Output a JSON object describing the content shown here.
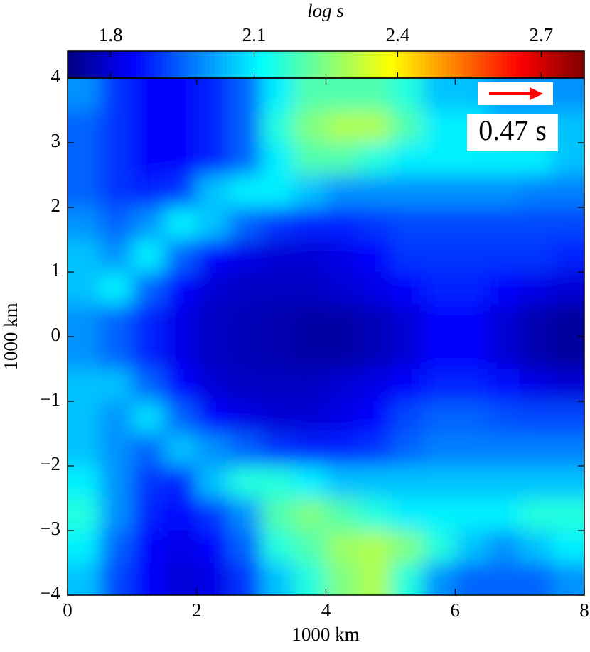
{
  "chart_data": {
    "type": "heatmap",
    "xlabel": "1000 km",
    "ylabel": "1000 km",
    "colorbar_label": "log s",
    "annotation": "0.47 s",
    "colormap": "jet",
    "xlim": [
      0,
      8
    ],
    "ylim": [
      -4,
      4
    ],
    "xticks": [
      0,
      2,
      4,
      6,
      8
    ],
    "yticks": [
      {
        "value": -4,
        "label": "−4"
      },
      {
        "value": -3,
        "label": "−3"
      },
      {
        "value": -2,
        "label": "−2"
      },
      {
        "value": -1,
        "label": "−1"
      },
      0,
      1,
      2,
      3,
      4
    ],
    "clim": [
      1.71,
      2.79
    ],
    "cticks": [
      1.8,
      2.1,
      2.4,
      2.7
    ],
    "x": [
      0.25,
      0.75,
      1.25,
      1.75,
      2.25,
      2.75,
      3.25,
      3.75,
      4.25,
      4.75,
      5.25,
      5.75,
      6.25,
      6.75,
      7.25,
      7.75
    ],
    "y": [
      3.75,
      3.25,
      2.75,
      2.25,
      1.75,
      1.25,
      0.75,
      0.25,
      -0.25,
      -0.75,
      -1.25,
      -1.75,
      -2.25,
      -2.75,
      -3.25,
      -3.75
    ],
    "values": [
      [
        2.0,
        1.9,
        1.85,
        1.85,
        1.88,
        1.95,
        2.1,
        2.2,
        2.2,
        2.2,
        2.15,
        2.05,
        2.05,
        2.0,
        2.0,
        2.0
      ],
      [
        1.95,
        1.9,
        1.85,
        1.85,
        1.88,
        1.95,
        2.15,
        2.25,
        2.3,
        2.3,
        2.2,
        2.1,
        2.1,
        2.05,
        2.05,
        2.05
      ],
      [
        1.95,
        1.9,
        1.85,
        1.85,
        1.88,
        1.95,
        2.1,
        2.2,
        2.2,
        2.15,
        2.1,
        2.1,
        2.1,
        2.1,
        2.1,
        2.05
      ],
      [
        1.95,
        1.9,
        1.88,
        1.9,
        2.05,
        2.1,
        2.1,
        2.05,
        2.0,
        2.0,
        2.0,
        2.0,
        2.0,
        2.0,
        1.98,
        1.98
      ],
      [
        2.0,
        1.95,
        2.0,
        2.1,
        2.05,
        1.95,
        1.9,
        1.88,
        1.88,
        1.9,
        1.92,
        1.92,
        1.92,
        1.92,
        1.92,
        1.92
      ],
      [
        2.05,
        2.0,
        2.1,
        1.95,
        1.85,
        1.82,
        1.8,
        1.8,
        1.82,
        1.85,
        1.9,
        1.9,
        1.9,
        1.9,
        1.9,
        1.88
      ],
      [
        2.05,
        2.1,
        1.95,
        1.85,
        1.8,
        1.78,
        1.78,
        1.78,
        1.8,
        1.82,
        1.85,
        1.88,
        1.88,
        1.85,
        1.82,
        1.8
      ],
      [
        2.0,
        1.95,
        1.88,
        1.82,
        1.78,
        1.77,
        1.76,
        1.75,
        1.75,
        1.77,
        1.8,
        1.85,
        1.85,
        1.8,
        1.76,
        1.74
      ],
      [
        2.0,
        1.95,
        1.88,
        1.82,
        1.78,
        1.77,
        1.76,
        1.75,
        1.75,
        1.77,
        1.8,
        1.85,
        1.85,
        1.8,
        1.76,
        1.74
      ],
      [
        2.05,
        2.05,
        1.95,
        1.85,
        1.8,
        1.78,
        1.78,
        1.78,
        1.8,
        1.82,
        1.85,
        1.88,
        1.88,
        1.86,
        1.82,
        1.8
      ],
      [
        2.05,
        2.0,
        2.08,
        1.95,
        1.85,
        1.82,
        1.8,
        1.8,
        1.82,
        1.85,
        1.92,
        1.95,
        1.95,
        1.93,
        1.92,
        1.92
      ],
      [
        2.05,
        2.0,
        1.95,
        2.05,
        2.0,
        1.95,
        1.9,
        1.88,
        1.88,
        1.9,
        1.95,
        1.98,
        1.98,
        1.98,
        1.98,
        1.98
      ],
      [
        2.1,
        2.0,
        1.9,
        1.88,
        2.05,
        2.15,
        2.15,
        2.1,
        2.05,
        2.05,
        2.05,
        2.05,
        2.05,
        2.05,
        2.05,
        2.05
      ],
      [
        2.15,
        2.0,
        1.88,
        1.85,
        1.9,
        2.0,
        2.2,
        2.25,
        2.2,
        2.15,
        2.1,
        2.1,
        2.1,
        2.1,
        2.15,
        2.15
      ],
      [
        2.1,
        1.95,
        1.85,
        1.82,
        1.85,
        1.95,
        2.15,
        2.2,
        2.28,
        2.3,
        2.25,
        2.15,
        2.05,
        2.0,
        2.05,
        2.1
      ],
      [
        2.05,
        1.92,
        1.85,
        1.8,
        1.82,
        1.9,
        2.05,
        2.15,
        2.25,
        2.3,
        2.15,
        2.0,
        1.95,
        1.95,
        1.95,
        2.0
      ]
    ]
  }
}
